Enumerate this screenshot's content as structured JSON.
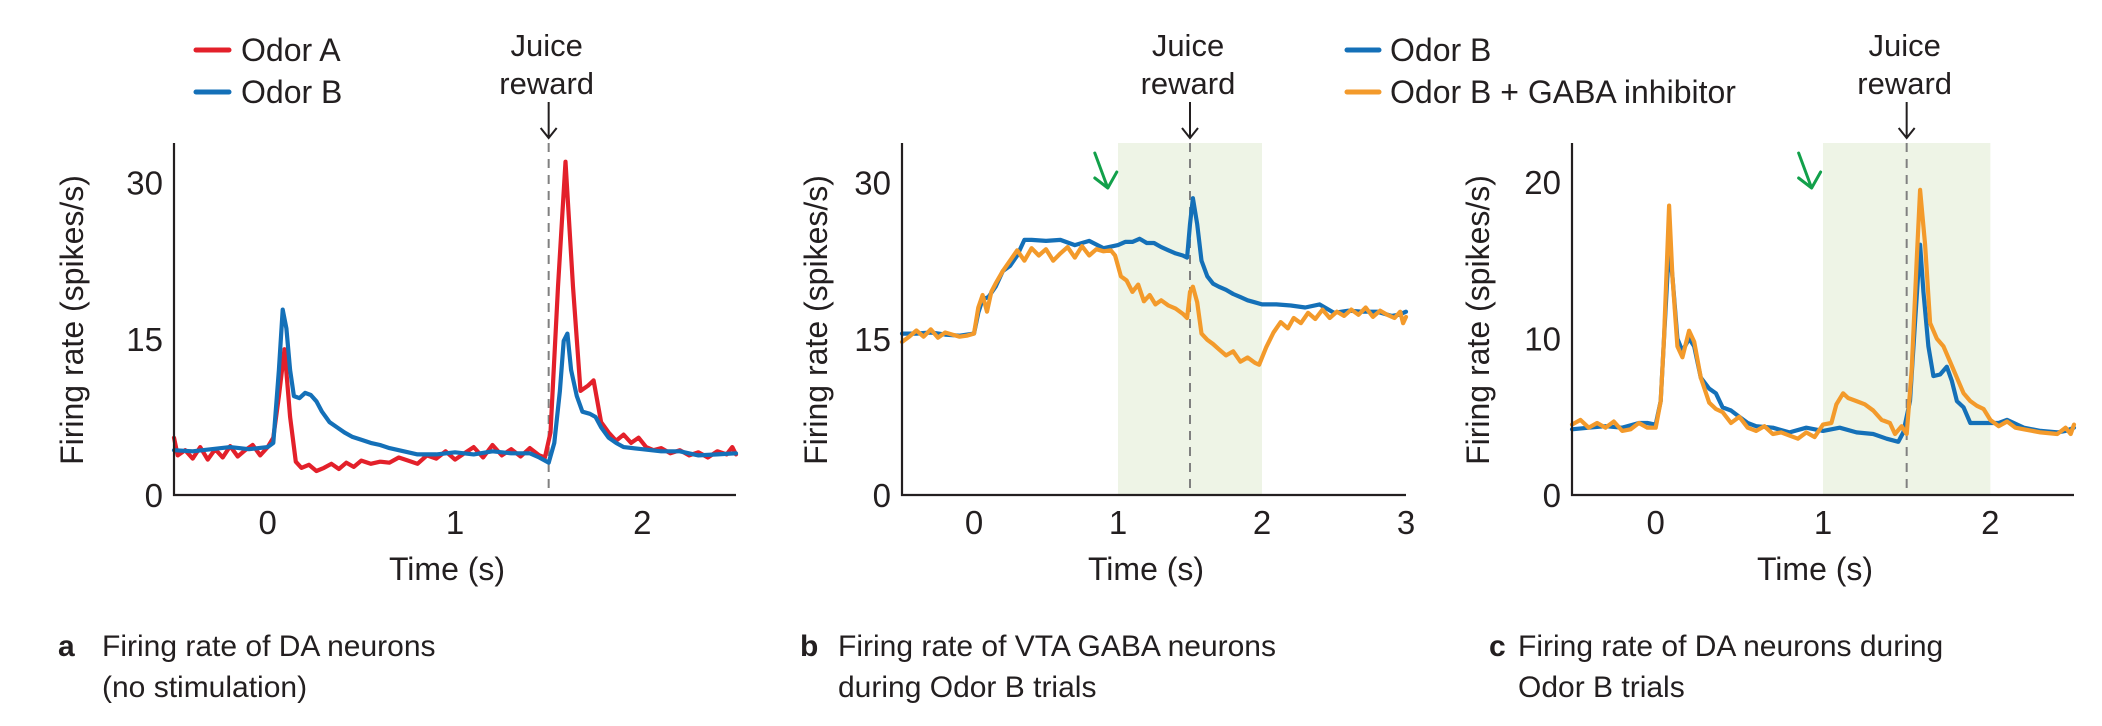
{
  "colors": {
    "odor_a": "#e3202a",
    "odor_b": "#1470b8",
    "odor_b_gaba": "#f39a2b",
    "stim_shade": "#eef4e6",
    "stim_arrow": "#12a04a",
    "axis": "#231f20",
    "reward_line": "#808080"
  },
  "chart_data": [
    {
      "id": "a",
      "type": "line",
      "title": "Firing rate of DA neurons (no stimulation)",
      "caption_letter": "a",
      "caption_lines": [
        "Firing rate of DA neurons",
        "(no stimulation)"
      ],
      "xlabel": "Time (s)",
      "ylabel": "Firing rate (spikes/s)",
      "xlim": [
        -0.5,
        2.5
      ],
      "ylim": [
        0,
        33.8
      ],
      "xticks": [
        0,
        1,
        2
      ],
      "xtick_labels": [
        "0",
        "1",
        "2"
      ],
      "yticks": [
        0,
        15,
        30
      ],
      "ytick_labels": [
        "0",
        "15",
        "30"
      ],
      "grid": false,
      "legend_position": "top-left",
      "annotation": {
        "text_lines": [
          "Juice",
          "reward"
        ],
        "x": 1.5
      },
      "shaded_interval": null,
      "stim_arrow_x": null,
      "series": [
        {
          "name": "Odor A",
          "color_key": "odor_a",
          "x": [
            -0.5,
            -0.48,
            -0.44,
            -0.4,
            -0.36,
            -0.32,
            -0.28,
            -0.24,
            -0.2,
            -0.16,
            -0.12,
            -0.08,
            -0.04,
            0.0,
            0.03,
            0.06,
            0.09,
            0.12,
            0.15,
            0.18,
            0.22,
            0.26,
            0.3,
            0.34,
            0.38,
            0.42,
            0.46,
            0.5,
            0.55,
            0.6,
            0.65,
            0.7,
            0.75,
            0.8,
            0.85,
            0.9,
            0.95,
            1.0,
            1.05,
            1.1,
            1.15,
            1.2,
            1.25,
            1.3,
            1.35,
            1.4,
            1.45,
            1.48,
            1.51,
            1.55,
            1.59,
            1.63,
            1.67,
            1.71,
            1.74,
            1.78,
            1.82,
            1.86,
            1.9,
            1.94,
            1.98,
            2.02,
            2.06,
            2.1,
            2.15,
            2.2,
            2.25,
            2.3,
            2.35,
            2.4,
            2.45,
            2.48,
            2.5
          ],
          "y": [
            5.5,
            3.8,
            4.3,
            3.5,
            4.6,
            3.4,
            4.4,
            3.6,
            4.7,
            3.7,
            4.3,
            4.8,
            3.8,
            4.6,
            5.5,
            9.5,
            14.0,
            7.5,
            3.2,
            2.6,
            2.9,
            2.3,
            2.6,
            3.0,
            2.5,
            3.1,
            2.7,
            3.3,
            3.0,
            3.2,
            3.1,
            3.6,
            3.3,
            3.0,
            3.8,
            3.5,
            4.2,
            3.4,
            4.0,
            4.6,
            3.6,
            4.8,
            3.8,
            4.4,
            3.7,
            4.5,
            3.8,
            3.6,
            6.0,
            20.0,
            32.0,
            20.0,
            10.0,
            10.5,
            11.0,
            7.0,
            6.0,
            5.2,
            5.8,
            5.0,
            5.5,
            4.6,
            4.3,
            4.5,
            4.0,
            4.3,
            3.8,
            4.1,
            3.6,
            4.2,
            3.9,
            4.6,
            3.9
          ]
        },
        {
          "name": "Odor B",
          "color_key": "odor_b",
          "x": [
            -0.5,
            -0.4,
            -0.3,
            -0.2,
            -0.1,
            0.0,
            0.03,
            0.06,
            0.08,
            0.1,
            0.12,
            0.14,
            0.17,
            0.2,
            0.23,
            0.26,
            0.29,
            0.33,
            0.37,
            0.41,
            0.45,
            0.5,
            0.55,
            0.6,
            0.65,
            0.7,
            0.75,
            0.8,
            0.9,
            1.0,
            1.1,
            1.2,
            1.3,
            1.4,
            1.45,
            1.5,
            1.53,
            1.56,
            1.58,
            1.6,
            1.62,
            1.65,
            1.68,
            1.72,
            1.75,
            1.78,
            1.82,
            1.86,
            1.9,
            2.0,
            2.1,
            2.2,
            2.3,
            2.4,
            2.5
          ],
          "y": [
            4.3,
            4.2,
            4.4,
            4.6,
            4.4,
            4.6,
            5.0,
            12.0,
            17.8,
            16.0,
            12.0,
            9.5,
            9.3,
            9.8,
            9.6,
            9.0,
            8.0,
            7.0,
            6.5,
            6.0,
            5.6,
            5.3,
            5.0,
            4.8,
            4.5,
            4.3,
            4.1,
            3.9,
            3.9,
            4.1,
            3.9,
            4.2,
            4.0,
            4.0,
            3.6,
            3.1,
            5.0,
            10.0,
            14.8,
            15.5,
            12.0,
            9.5,
            8.0,
            7.8,
            7.5,
            6.5,
            5.5,
            5.0,
            4.6,
            4.4,
            4.2,
            4.2,
            3.8,
            3.9,
            4.0
          ]
        }
      ]
    },
    {
      "id": "b",
      "type": "line",
      "title": "Firing rate of VTA GABA neurons during Odor B trials",
      "caption_letter": "b",
      "caption_lines": [
        "Firing rate of VTA GABA neurons",
        "during Odor B trials"
      ],
      "xlabel": "Time (s)",
      "ylabel": "Firing rate (spikes/s)",
      "xlim": [
        -0.5,
        3.0
      ],
      "ylim": [
        0,
        33.8
      ],
      "xticks": [
        0,
        1,
        2,
        3
      ],
      "xtick_labels": [
        "0",
        "1",
        "2",
        "3"
      ],
      "yticks": [
        0,
        15,
        30
      ],
      "ytick_labels": [
        "0",
        "15",
        "30"
      ],
      "grid": false,
      "legend_position": "top-right",
      "annotation": {
        "text_lines": [
          "Juice",
          "reward"
        ],
        "x": 1.5
      },
      "shaded_interval": [
        1.0,
        2.0
      ],
      "stim_arrow_x": 0.95,
      "series": [
        {
          "name": "Odor B",
          "color_key": "odor_b",
          "x": [
            -0.5,
            -0.4,
            -0.3,
            -0.2,
            -0.1,
            0.0,
            0.03,
            0.06,
            0.1,
            0.15,
            0.2,
            0.25,
            0.3,
            0.35,
            0.4,
            0.5,
            0.6,
            0.7,
            0.8,
            0.9,
            1.0,
            1.05,
            1.1,
            1.15,
            1.2,
            1.25,
            1.3,
            1.35,
            1.4,
            1.45,
            1.48,
            1.5,
            1.52,
            1.55,
            1.58,
            1.62,
            1.66,
            1.7,
            1.75,
            1.8,
            1.85,
            1.9,
            1.95,
            2.0,
            2.1,
            2.2,
            2.3,
            2.4,
            2.5,
            2.6,
            2.7,
            2.8,
            2.9,
            2.95,
            3.0
          ],
          "y": [
            15.5,
            15.5,
            15.6,
            15.4,
            15.3,
            15.5,
            17.5,
            18.8,
            19.0,
            20.0,
            21.5,
            22.0,
            23.0,
            24.5,
            24.5,
            24.4,
            24.5,
            24.0,
            24.4,
            23.7,
            24.0,
            24.3,
            24.3,
            24.6,
            24.2,
            24.2,
            23.8,
            23.5,
            23.2,
            23.0,
            22.8,
            26.0,
            28.5,
            26.0,
            22.5,
            21.0,
            20.3,
            20.0,
            19.7,
            19.3,
            19.0,
            18.7,
            18.5,
            18.3,
            18.3,
            18.2,
            18.0,
            18.3,
            17.5,
            17.7,
            17.6,
            17.6,
            17.2,
            17.3,
            17.6
          ]
        },
        {
          "name": "Odor B + GABA inhibitor",
          "color_key": "odor_b_gaba",
          "x": [
            -0.5,
            -0.45,
            -0.4,
            -0.35,
            -0.3,
            -0.25,
            -0.2,
            -0.15,
            -0.1,
            -0.05,
            0.0,
            0.03,
            0.06,
            0.09,
            0.12,
            0.15,
            0.2,
            0.25,
            0.3,
            0.35,
            0.4,
            0.45,
            0.5,
            0.55,
            0.6,
            0.65,
            0.7,
            0.75,
            0.8,
            0.85,
            0.9,
            0.95,
            0.98,
            1.02,
            1.06,
            1.1,
            1.14,
            1.18,
            1.22,
            1.26,
            1.3,
            1.35,
            1.4,
            1.45,
            1.48,
            1.5,
            1.52,
            1.55,
            1.58,
            1.62,
            1.66,
            1.7,
            1.75,
            1.8,
            1.85,
            1.9,
            1.95,
            1.98,
            2.03,
            2.08,
            2.13,
            2.18,
            2.22,
            2.27,
            2.32,
            2.37,
            2.42,
            2.47,
            2.52,
            2.57,
            2.62,
            2.67,
            2.72,
            2.77,
            2.82,
            2.87,
            2.92,
            2.96,
            2.98,
            3.0
          ],
          "y": [
            14.7,
            15.2,
            15.8,
            15.2,
            15.9,
            15.1,
            15.6,
            15.4,
            15.2,
            15.3,
            15.5,
            18.0,
            19.2,
            17.6,
            19.5,
            20.3,
            21.5,
            22.5,
            23.5,
            22.5,
            23.7,
            23.0,
            23.6,
            22.5,
            23.2,
            23.8,
            22.8,
            23.9,
            23.0,
            23.6,
            23.4,
            23.5,
            23.0,
            21.0,
            20.6,
            19.5,
            20.2,
            18.6,
            19.2,
            18.3,
            18.7,
            18.2,
            17.9,
            17.4,
            17.0,
            19.5,
            20.0,
            18.5,
            15.5,
            14.9,
            14.5,
            14.0,
            13.4,
            13.8,
            12.8,
            13.2,
            12.7,
            12.5,
            14.2,
            15.6,
            16.6,
            16.0,
            17.0,
            16.5,
            17.5,
            16.9,
            17.8,
            17.0,
            17.6,
            17.2,
            17.8,
            17.3,
            18.0,
            17.1,
            17.7,
            17.3,
            17.0,
            17.6,
            16.5,
            17.1
          ]
        }
      ]
    },
    {
      "id": "c",
      "type": "line",
      "title": "Firing rate of DA neurons during Odor B trials",
      "caption_letter": "c",
      "caption_lines": [
        "Firing rate of DA neurons during",
        "Odor B trials"
      ],
      "xlabel": "Time (s)",
      "ylabel": "Firing rate (spikes/s)",
      "xlim": [
        -0.5,
        2.5
      ],
      "ylim": [
        0,
        22.5
      ],
      "xticks": [
        0,
        1,
        2
      ],
      "xtick_labels": [
        "0",
        "1",
        "2"
      ],
      "yticks": [
        0,
        10,
        20
      ],
      "ytick_labels": [
        "0",
        "10",
        "20"
      ],
      "grid": false,
      "legend_position": "top-left",
      "annotation": {
        "text_lines": [
          "Juice",
          "reward"
        ],
        "x": 1.5
      },
      "shaded_interval": [
        1.0,
        2.0
      ],
      "stim_arrow_x": 0.95,
      "series": [
        {
          "name": "Odor B",
          "color_key": "odor_b",
          "x": [
            -0.5,
            -0.4,
            -0.3,
            -0.2,
            -0.1,
            -0.05,
            0.0,
            0.03,
            0.05,
            0.08,
            0.1,
            0.13,
            0.16,
            0.2,
            0.23,
            0.27,
            0.32,
            0.36,
            0.4,
            0.45,
            0.5,
            0.55,
            0.6,
            0.7,
            0.8,
            0.9,
            1.0,
            1.1,
            1.2,
            1.3,
            1.38,
            1.45,
            1.48,
            1.52,
            1.55,
            1.58,
            1.6,
            1.63,
            1.66,
            1.7,
            1.74,
            1.77,
            1.8,
            1.84,
            1.88,
            1.95,
            2.05,
            2.1,
            2.2,
            2.3,
            2.4,
            2.45,
            2.5
          ],
          "y": [
            4.2,
            4.3,
            4.4,
            4.3,
            4.6,
            4.6,
            4.5,
            6.0,
            10.0,
            16.0,
            14.0,
            10.0,
            9.2,
            10.0,
            9.5,
            7.5,
            6.8,
            6.5,
            5.6,
            5.4,
            5.0,
            4.6,
            4.4,
            4.3,
            4.0,
            4.3,
            4.1,
            4.3,
            4.0,
            3.9,
            3.6,
            3.4,
            4.0,
            6.0,
            11.0,
            16.0,
            13.0,
            9.5,
            7.6,
            7.7,
            8.2,
            7.3,
            6.0,
            5.6,
            4.6,
            4.6,
            4.6,
            4.8,
            4.3,
            4.1,
            4.0,
            4.1,
            4.3
          ]
        },
        {
          "name": "Odor B + GABA inhibitor",
          "color_key": "odor_b_gaba",
          "x": [
            -0.5,
            -0.45,
            -0.4,
            -0.35,
            -0.3,
            -0.25,
            -0.2,
            -0.15,
            -0.1,
            -0.05,
            0.0,
            0.03,
            0.05,
            0.08,
            0.1,
            0.13,
            0.16,
            0.2,
            0.23,
            0.27,
            0.32,
            0.36,
            0.4,
            0.45,
            0.5,
            0.55,
            0.6,
            0.65,
            0.7,
            0.75,
            0.8,
            0.85,
            0.9,
            0.95,
            1.0,
            1.05,
            1.08,
            1.12,
            1.15,
            1.2,
            1.25,
            1.3,
            1.35,
            1.4,
            1.43,
            1.47,
            1.5,
            1.53,
            1.56,
            1.58,
            1.61,
            1.64,
            1.68,
            1.72,
            1.76,
            1.8,
            1.84,
            1.88,
            1.92,
            1.96,
            2.0,
            2.05,
            2.1,
            2.15,
            2.2,
            2.3,
            2.4,
            2.45,
            2.48,
            2.5
          ],
          "y": [
            4.5,
            4.8,
            4.3,
            4.6,
            4.3,
            4.7,
            4.1,
            4.2,
            4.6,
            4.3,
            4.3,
            6.0,
            10.0,
            18.5,
            14.0,
            9.5,
            8.8,
            10.5,
            9.8,
            7.5,
            5.9,
            5.5,
            5.3,
            4.6,
            5.0,
            4.3,
            4.1,
            4.4,
            3.9,
            4.0,
            3.8,
            3.6,
            4.0,
            3.7,
            4.5,
            4.6,
            5.8,
            6.5,
            6.2,
            6.0,
            5.8,
            5.4,
            4.8,
            4.6,
            3.9,
            4.4,
            3.9,
            8.0,
            15.0,
            19.5,
            16.0,
            11.0,
            10.0,
            9.5,
            8.5,
            7.5,
            6.5,
            6.0,
            5.7,
            5.5,
            4.8,
            4.4,
            4.7,
            4.3,
            4.2,
            4.0,
            3.9,
            4.3,
            3.9,
            4.5
          ]
        }
      ]
    }
  ],
  "legends": {
    "panel_a": [
      {
        "label": "Odor A",
        "color_key": "odor_a"
      },
      {
        "label": "Odor B",
        "color_key": "odor_b"
      }
    ],
    "panel_bc": [
      {
        "label": "Odor B",
        "color_key": "odor_b"
      },
      {
        "label": "Odor B + GABA inhibitor",
        "color_key": "odor_b_gaba"
      }
    ]
  }
}
